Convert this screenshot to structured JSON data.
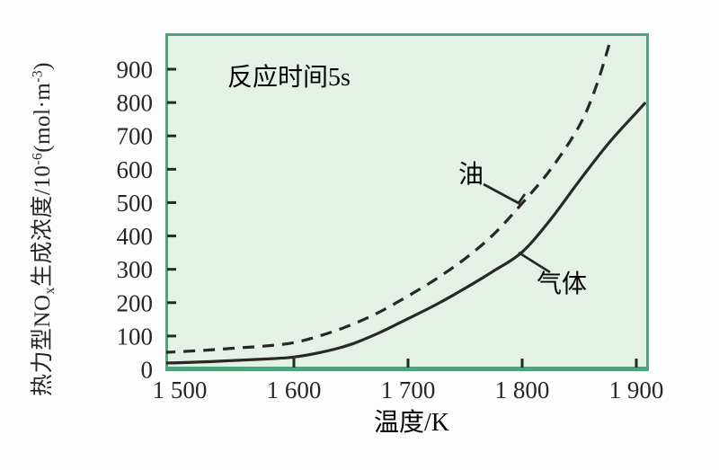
{
  "figure": {
    "background_color": "#fdfdfd",
    "plot_background_color": "#e5f1e7",
    "border_color": "#4fa37c",
    "tick_color": "#17301f",
    "text_color": "#262626",
    "curve_color": "#282828"
  },
  "chart_data": {
    "type": "line",
    "title": "",
    "annotation": "反应时间5s",
    "xlabel": "温度/K",
    "ylabel": "热力型NOx生成浓度/10⁻⁶(mol·m⁻³)",
    "ylabel_parts": [
      {
        "text": "热力型NO",
        "style": "normal"
      },
      {
        "text": "x",
        "style": "sub"
      },
      {
        "text": "生成浓度/10",
        "style": "normal"
      },
      {
        "text": "-6",
        "style": "sup"
      },
      {
        "text": "(mol·m",
        "style": "normal"
      },
      {
        "text": "-3",
        "style": "sup"
      },
      {
        "text": ")",
        "style": "normal"
      }
    ],
    "xlim": [
      1486,
      1911
    ],
    "ylim": [
      0,
      1008
    ],
    "grid": false,
    "legend_position": "inline-labels",
    "x_ticks": [
      1500,
      1600,
      1700,
      1800,
      1900
    ],
    "x_tick_labels": [
      "1 500",
      "1 600",
      "1 700",
      "1 800",
      "1 900"
    ],
    "x_ticks_with_mark": [
      1600,
      1700,
      1800,
      1900
    ],
    "y_ticks": [
      0,
      100,
      200,
      300,
      400,
      500,
      600,
      700,
      800,
      900
    ],
    "y_ticks_with_mark": [
      100,
      200,
      300,
      400,
      500,
      600,
      700,
      800,
      900
    ],
    "series": [
      {
        "name": "油",
        "line_style": "dashed",
        "x": [
          1486,
          1500,
          1525,
          1550,
          1575,
          1600,
          1625,
          1650,
          1675,
          1700,
          1725,
          1750,
          1775,
          1800,
          1825,
          1850,
          1865,
          1878
        ],
        "y": [
          51,
          53,
          58,
          64,
          70,
          80,
          103,
          133,
          172,
          220,
          272,
          332,
          405,
          498,
          600,
          730,
          850,
          995
        ]
      },
      {
        "name": "气体",
        "line_style": "solid",
        "x": [
          1486,
          1500,
          1525,
          1550,
          1575,
          1600,
          1625,
          1650,
          1675,
          1700,
          1725,
          1750,
          1775,
          1800,
          1825,
          1850,
          1875,
          1900,
          1908
        ],
        "y": [
          19,
          20,
          23,
          27,
          31,
          37,
          52,
          75,
          110,
          152,
          195,
          243,
          295,
          352,
          450,
          565,
          675,
          770,
          800
        ]
      }
    ]
  }
}
